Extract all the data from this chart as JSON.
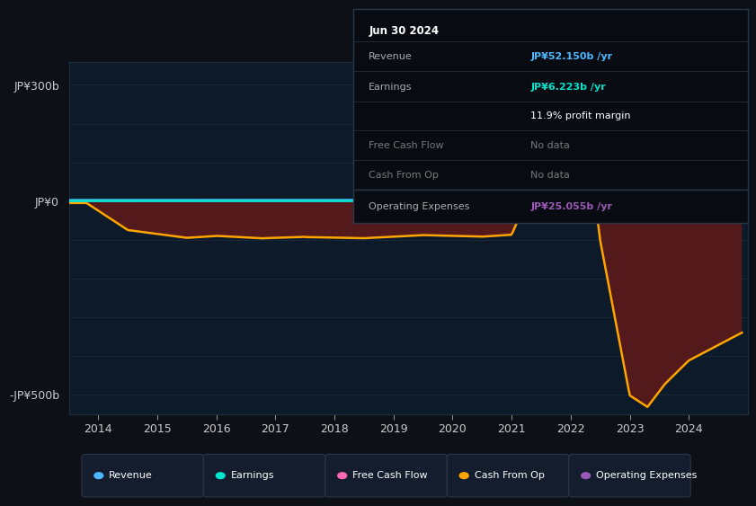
{
  "bg_color": "#0d1117",
  "plot_bg_color": "#0d1a2a",
  "grid_color": "#1e2d3d",
  "info_box_bg": "#080c12",
  "info_box_border": "#2a3545",
  "revenue_color": "#4db8ff",
  "earnings_color": "#00e5cc",
  "free_cash_flow_color": "#ff69b4",
  "cash_from_op_color": "#ffa500",
  "operating_expenses_color": "#9b59b6",
  "fill_positive_color": "#7a2a1a",
  "fill_negative_color": "#5c1a1a",
  "ylim": [
    -550,
    360
  ],
  "xlim": [
    2013.5,
    2025.0
  ],
  "yticks": [
    300,
    0,
    -500
  ],
  "ytick_labels": [
    "JP¥300b",
    "JP¥0",
    "-JP¥500b"
  ],
  "xticks": [
    2014,
    2015,
    2016,
    2017,
    2018,
    2019,
    2020,
    2021,
    2022,
    2023,
    2024
  ],
  "info_date": "Jun 30 2024",
  "info_revenue_label": "Revenue",
  "info_revenue_value": "JP¥52.150b",
  "info_earnings_label": "Earnings",
  "info_earnings_value": "JP¥6.223b",
  "info_margin": "11.9% profit margin",
  "info_fcf_label": "Free Cash Flow",
  "info_fcf_value": "No data",
  "info_cashop_label": "Cash From Op",
  "info_cashop_value": "No data",
  "info_opex_label": "Operating Expenses",
  "info_opex_value": "JP¥25.055b",
  "legend_labels": [
    "Revenue",
    "Earnings",
    "Free Cash Flow",
    "Cash From Op",
    "Operating Expenses"
  ],
  "legend_colors": [
    "#4db8ff",
    "#00e5cc",
    "#ff69b4",
    "#ffa500",
    "#9b59b6"
  ]
}
